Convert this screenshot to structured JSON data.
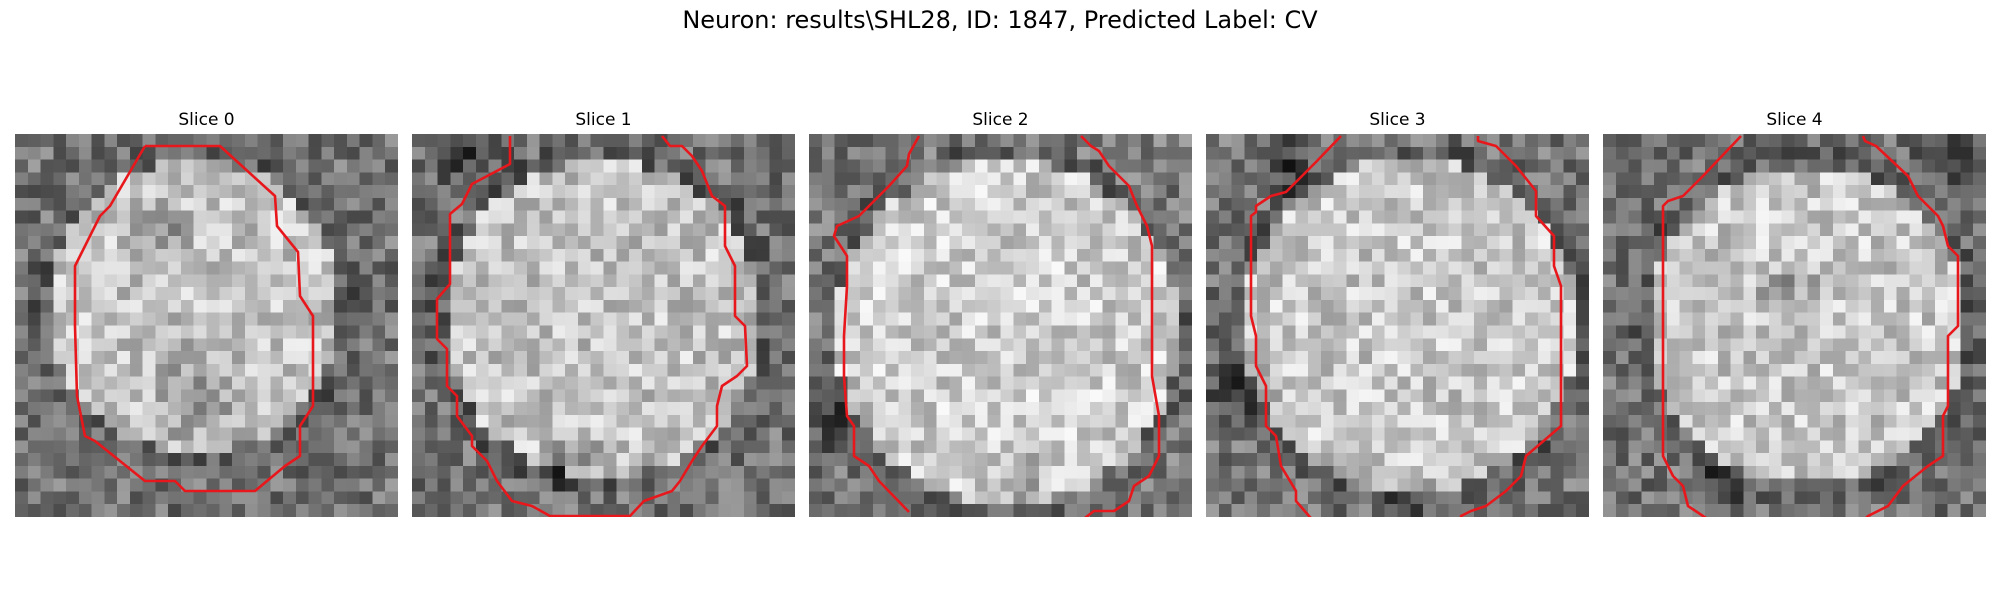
{
  "figure_title": "Neuron: results\\SHL28, ID: 1847, Predicted Label: CV",
  "contour_color": "#e8171c",
  "panels": [
    {
      "title": "Slice 0"
    },
    {
      "title": "Slice 1"
    },
    {
      "title": "Slice 2"
    },
    {
      "title": "Slice 3"
    },
    {
      "title": "Slice 4"
    }
  ]
}
